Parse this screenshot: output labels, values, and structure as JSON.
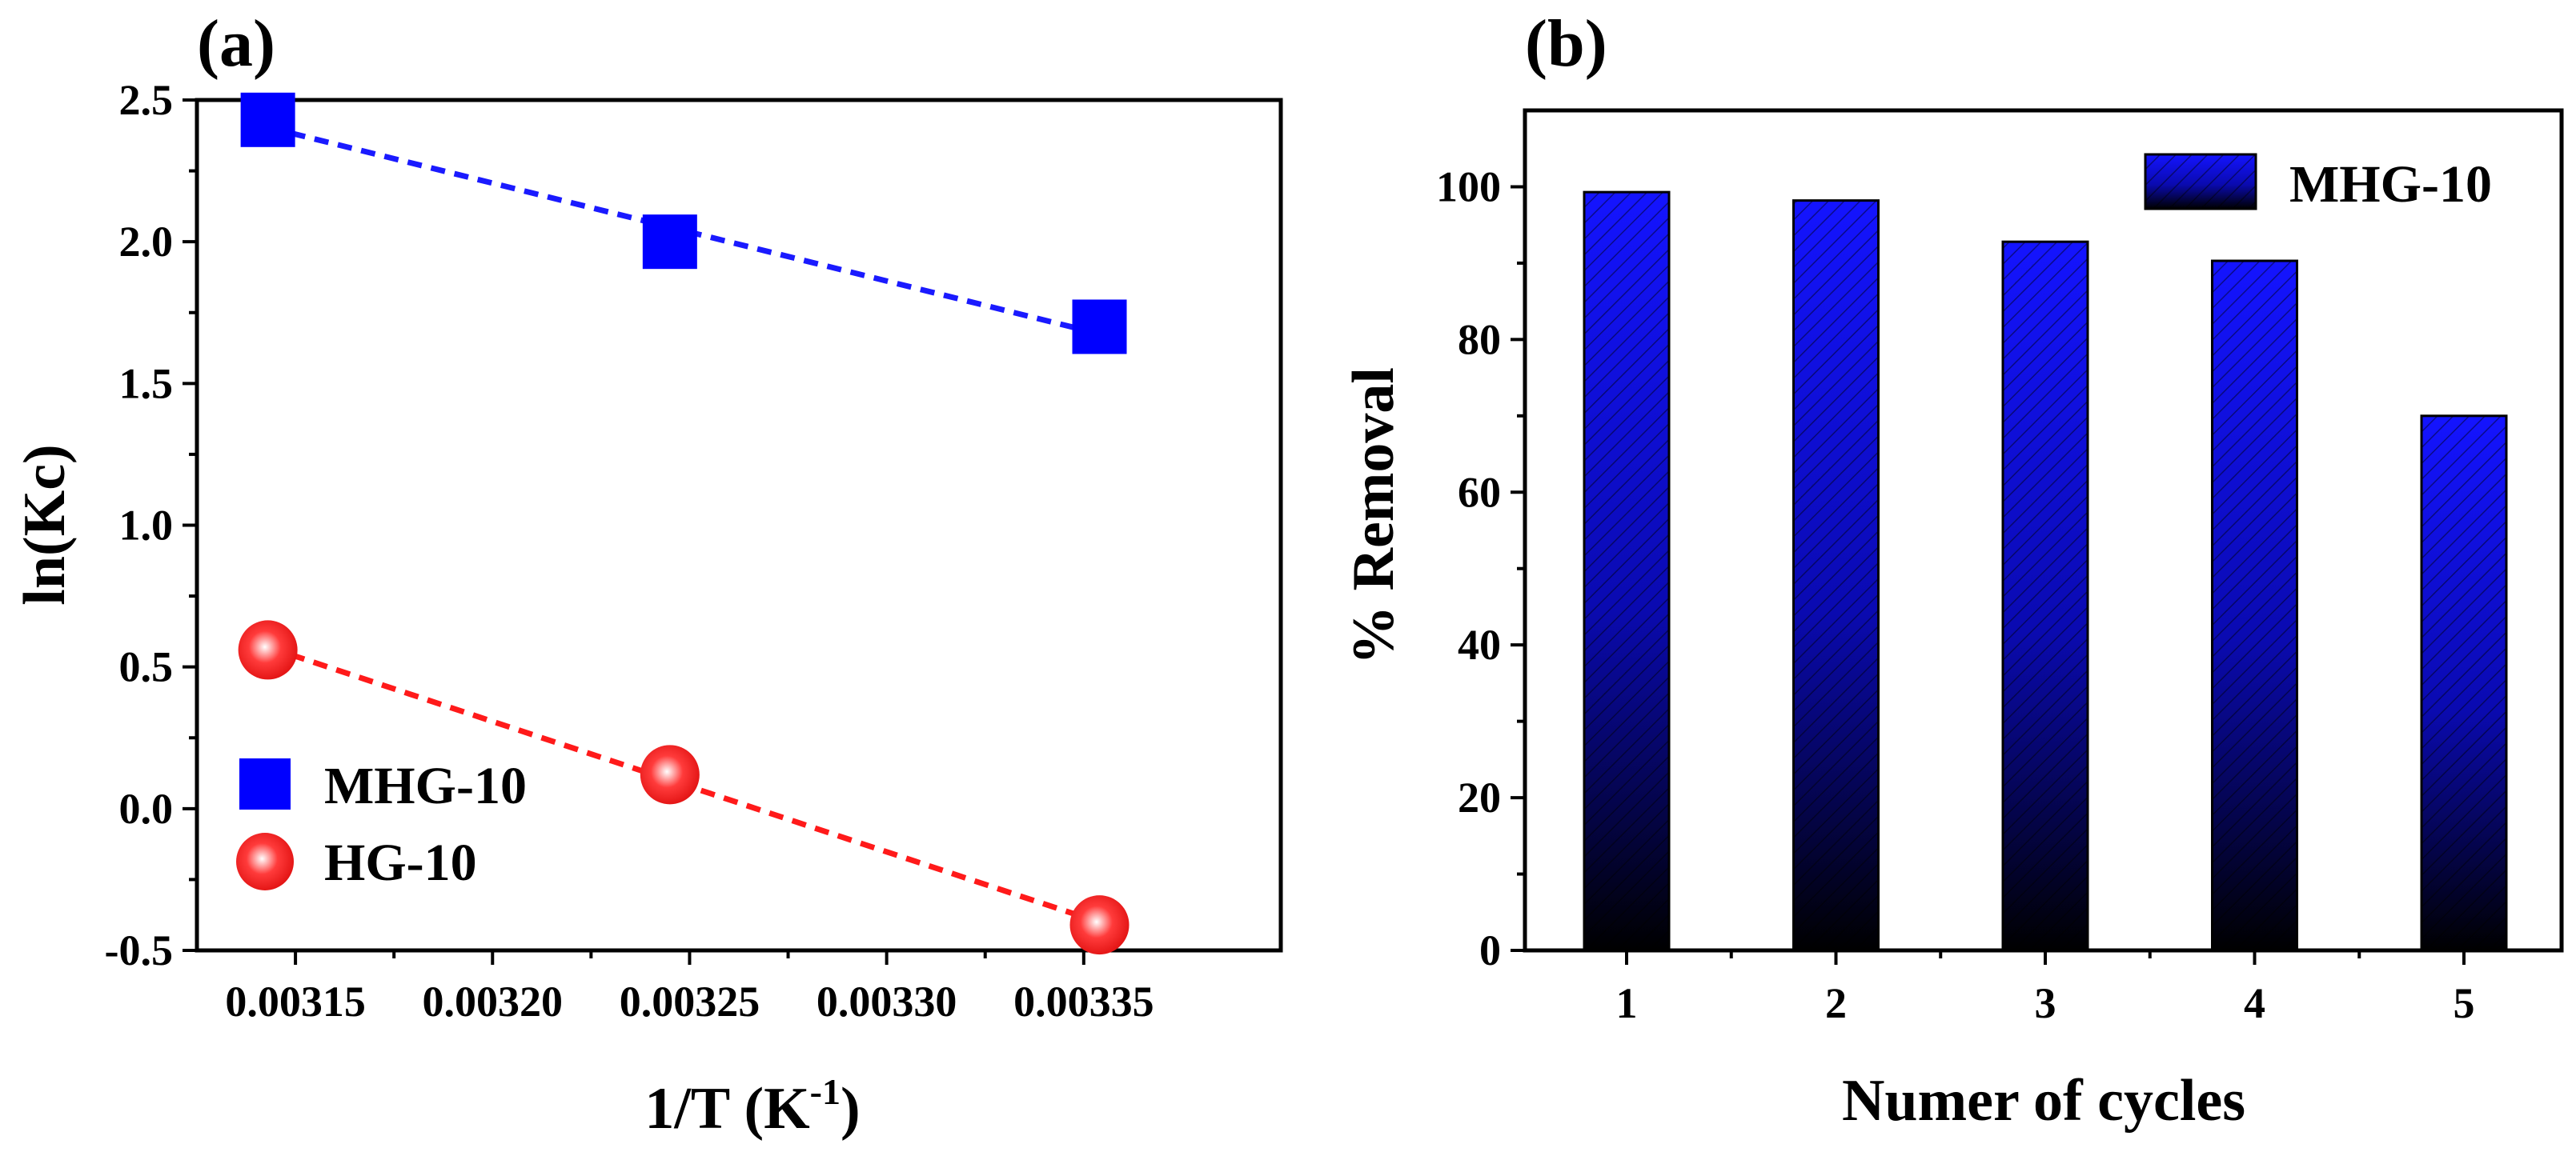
{
  "chart_data": [
    {
      "type": "scatter",
      "panel_label": "(a)",
      "xlabel_main": "1/T (K",
      "xlabel_sup": "-1",
      "xlabel_end": ")",
      "ylabel": "ln(Kc)",
      "xlim": [
        0.003125,
        0.0034
      ],
      "ylim": [
        -0.5,
        2.5
      ],
      "x_ticks": [
        "0.00315",
        "0.00320",
        "0.00325",
        "0.00330",
        "0.00335"
      ],
      "x_tick_values": [
        0.00315,
        0.0032,
        0.00325,
        0.0033,
        0.00335
      ],
      "y_ticks": [
        "-0.5",
        "0.0",
        "0.5",
        "1.0",
        "1.5",
        "2.0",
        "2.5"
      ],
      "y_tick_values": [
        -0.5,
        0.0,
        0.5,
        1.0,
        1.5,
        2.0,
        2.5
      ],
      "legend_position": "bottom-left",
      "series": [
        {
          "name": "MHG-10",
          "marker": "square",
          "color": "#0000ff",
          "fit_line": "dashed",
          "x": [
            0.003143,
            0.003245,
            0.003354
          ],
          "y": [
            2.43,
            2.0,
            1.7
          ]
        },
        {
          "name": "HG-10",
          "marker": "sphere",
          "color": "#ff2a2a",
          "fit_line": "dashed",
          "x": [
            0.003143,
            0.003245,
            0.003354
          ],
          "y": [
            0.56,
            0.12,
            -0.41
          ]
        }
      ]
    },
    {
      "type": "bar",
      "panel_label": "(b)",
      "xlabel": "Numer of cycles",
      "ylabel": "% Removal",
      "ylim": [
        0,
        110
      ],
      "categories": [
        "1",
        "2",
        "3",
        "4",
        "5"
      ],
      "y_ticks": [
        "0",
        "20",
        "40",
        "60",
        "80",
        "100"
      ],
      "y_tick_values": [
        0,
        20,
        40,
        60,
        80,
        100
      ],
      "legend_position": "top-right",
      "fill": "hatched gradient blue to black",
      "color_top": "#1414ff",
      "color_bottom": "#000000",
      "series": [
        {
          "name": "MHG-10",
          "values": [
            99.3,
            98.2,
            92.8,
            90.3,
            70.0
          ]
        }
      ]
    }
  ]
}
